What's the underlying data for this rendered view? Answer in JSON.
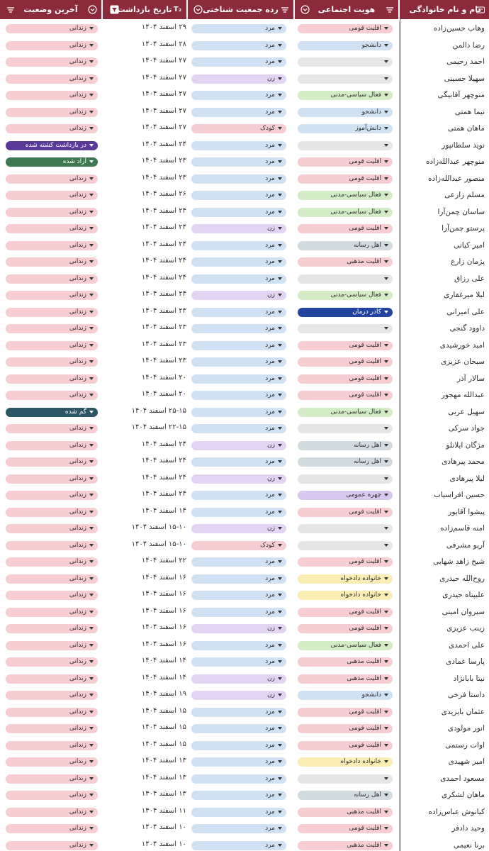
{
  "header": {
    "columns": [
      {
        "key": "name",
        "title": "نام و نام خانوادگی"
      },
      {
        "key": "identity",
        "title": "هویت اجتماعی"
      },
      {
        "key": "demographic",
        "title": "رده جمعیت شناختی"
      },
      {
        "key": "date",
        "title": "تاریخ بازداشت"
      },
      {
        "key": "status",
        "title": "آخرین وضعیت"
      }
    ],
    "colors": {
      "bar": "#8b2a3a",
      "text": "#ffffff"
    }
  },
  "colors": {
    "pink": "#f6cdd0",
    "blue": "#cfe1f3",
    "gray": "#e6e6e6",
    "green": "#d4ecc6",
    "lavender": "#e3d4f3",
    "steel": "#d2dbe0",
    "yellow": "#fbedb4",
    "purple": "#d8c7ef",
    "navy": "#23449e",
    "violet": "#5a3a99",
    "darkgreen": "#3f7752",
    "teal": "#2c5566"
  },
  "rows": [
    {
      "name": "وهاب حسین‌زاده",
      "identity": "اقلیت قومی",
      "identity_color": "pink",
      "demo": "مرد",
      "demo_color": "blue",
      "date": "۲۹ اسفند ۱۴۰۴",
      "status": "زندانی",
      "status_color": "pink"
    },
    {
      "name": "رضا دالمن",
      "identity": "دانشجو",
      "identity_color": "blue",
      "demo": "مرد",
      "demo_color": "blue",
      "date": "۲۸ اسفند ۱۴۰۴",
      "status": "زندانی",
      "status_color": "pink"
    },
    {
      "name": "احمد رحیمی",
      "identity": "",
      "identity_color": "gray",
      "demo": "مرد",
      "demo_color": "blue",
      "date": "۲۷ اسفند ۱۴۰۴",
      "status": "زندانی",
      "status_color": "pink"
    },
    {
      "name": "سهیلا حسینی",
      "identity": "",
      "identity_color": "gray",
      "demo": "زن",
      "demo_color": "lavender",
      "date": "۲۷ اسفند ۱۴۰۴",
      "status": "زندانی",
      "status_color": "pink"
    },
    {
      "name": "منوچهر آقابیگی",
      "identity": "فعال سیاسی-مدنی",
      "identity_color": "green",
      "demo": "مرد",
      "demo_color": "blue",
      "date": "۲۷ اسفند ۱۴۰۴",
      "status": "زندانی",
      "status_color": "pink"
    },
    {
      "name": "نیما همتی",
      "identity": "دانشجو",
      "identity_color": "blue",
      "demo": "مرد",
      "demo_color": "blue",
      "date": "۲۷ اسفند ۱۴۰۴",
      "status": "زندانی",
      "status_color": "pink"
    },
    {
      "name": "ماهان همتی",
      "identity": "دانش‌آموز",
      "identity_color": "blue",
      "demo": "کودک",
      "demo_color": "pink",
      "date": "۲۷ اسفند ۱۴۰۴",
      "status": "زندانی",
      "status_color": "pink"
    },
    {
      "name": "نوید سلطانپور",
      "identity": "",
      "identity_color": "gray",
      "demo": "مرد",
      "demo_color": "blue",
      "date": "۲۴ اسفند ۱۴۰۴",
      "status": "در بازداشت کشته شده",
      "status_color": "violet"
    },
    {
      "name": "منوچهر عبدالله‌زاده",
      "identity": "اقلیت قومی",
      "identity_color": "pink",
      "demo": "مرد",
      "demo_color": "blue",
      "date": "۲۳ اسفند ۱۴۰۴",
      "status": "آزاد شده",
      "status_color": "darkgreen"
    },
    {
      "name": "منصور عبدالله‌زاده",
      "identity": "اقلیت قومی",
      "identity_color": "pink",
      "demo": "مرد",
      "demo_color": "blue",
      "date": "۲۳ اسفند ۱۴۰۴",
      "status": "زندانی",
      "status_color": "pink"
    },
    {
      "name": "مسلم زارعی",
      "identity": "فعال سیاسی-مدنی",
      "identity_color": "green",
      "demo": "مرد",
      "demo_color": "blue",
      "date": "۲۶ اسفند ۱۴۰۴",
      "status": "زندانی",
      "status_color": "pink"
    },
    {
      "name": "ساسان چمن‌آرا",
      "identity": "فعال سیاسی-مدنی",
      "identity_color": "green",
      "demo": "مرد",
      "demo_color": "blue",
      "date": "۲۴ اسفند ۱۴۰۴",
      "status": "زندانی",
      "status_color": "pink"
    },
    {
      "name": "پرستو چمن‌آرا",
      "identity": "اقلیت قومی",
      "identity_color": "pink",
      "demo": "زن",
      "demo_color": "lavender",
      "date": "۲۴ اسفند ۱۴۰۴",
      "status": "زندانی",
      "status_color": "pink"
    },
    {
      "name": "امیر کیانی",
      "identity": "اهل رسانه",
      "identity_color": "steel",
      "demo": "مرد",
      "demo_color": "blue",
      "date": "۲۴ اسفند ۱۴۰۴",
      "status": "زندانی",
      "status_color": "pink"
    },
    {
      "name": "پژمان زارع",
      "identity": "اقلیت مذهبی",
      "identity_color": "pink",
      "demo": "مرد",
      "demo_color": "blue",
      "date": "۲۴ اسفند ۱۴۰۴",
      "status": "زندانی",
      "status_color": "pink"
    },
    {
      "name": "علی رزاق",
      "identity": "",
      "identity_color": "gray",
      "demo": "مرد",
      "demo_color": "blue",
      "date": "۲۴ اسفند ۱۴۰۴",
      "status": "زندانی",
      "status_color": "pink"
    },
    {
      "name": "لیلا میرغفاری",
      "identity": "فعال سیاسی-مدنی",
      "identity_color": "green",
      "demo": "زن",
      "demo_color": "lavender",
      "date": "۲۴ اسفند ۱۴۰۴",
      "status": "زندانی",
      "status_color": "pink"
    },
    {
      "name": "علی امیرانی",
      "identity": "کادر درمان",
      "identity_color": "navy",
      "demo": "مرد",
      "demo_color": "blue",
      "date": "۲۳ اسفند ۱۴۰۴",
      "status": "زندانی",
      "status_color": "pink"
    },
    {
      "name": "داوود گنجی",
      "identity": "",
      "identity_color": "gray",
      "demo": "مرد",
      "demo_color": "blue",
      "date": "۲۳ اسفند ۱۴۰۴",
      "status": "زندانی",
      "status_color": "pink"
    },
    {
      "name": "امید خورشیدی",
      "identity": "اقلیت قومی",
      "identity_color": "pink",
      "demo": "مرد",
      "demo_color": "blue",
      "date": "۲۳ اسفند ۱۴۰۴",
      "status": "زندانی",
      "status_color": "pink"
    },
    {
      "name": "سبحان عزیزی",
      "identity": "اقلیت قومی",
      "identity_color": "pink",
      "demo": "مرد",
      "demo_color": "blue",
      "date": "۲۳ اسفند ۱۴۰۴",
      "status": "زندانی",
      "status_color": "pink"
    },
    {
      "name": "سالار آذر",
      "identity": "اقلیت قومی",
      "identity_color": "pink",
      "demo": "مرد",
      "demo_color": "blue",
      "date": "۲۰ اسفند ۱۴۰۴",
      "status": "زندانی",
      "status_color": "pink"
    },
    {
      "name": "عبدالله مهجور",
      "identity": "اقلیت قومی",
      "identity_color": "pink",
      "demo": "مرد",
      "demo_color": "blue",
      "date": "۲۰ اسفند ۱۴۰۴",
      "status": "زندانی",
      "status_color": "pink"
    },
    {
      "name": "سهیل عربی",
      "identity": "فعال سیاسی-مدنی",
      "identity_color": "green",
      "demo": "مرد",
      "demo_color": "blue",
      "date": "۲۵-۱۵ اسفند ۱۴۰۴",
      "status": "گم شده",
      "status_color": "teal"
    },
    {
      "name": "جواد سرکی",
      "identity": "",
      "identity_color": "gray",
      "demo": "مرد",
      "demo_color": "blue",
      "date": "۲۲-۱۵ اسفند ۱۴۰۴",
      "status": "زندانی",
      "status_color": "pink"
    },
    {
      "name": "مژگان ایلانلو",
      "identity": "اهل رسانه",
      "identity_color": "steel",
      "demo": "زن",
      "demo_color": "lavender",
      "date": "۲۴ اسفند ۱۴۰۴",
      "status": "زندانی",
      "status_color": "pink"
    },
    {
      "name": "محمد پیرهادی",
      "identity": "اهل رسانه",
      "identity_color": "steel",
      "demo": "مرد",
      "demo_color": "blue",
      "date": "۲۴ اسفند ۱۴۰۴",
      "status": "زندانی",
      "status_color": "pink"
    },
    {
      "name": "لیلا پیرهادی",
      "identity": "",
      "identity_color": "gray",
      "demo": "زن",
      "demo_color": "lavender",
      "date": "۲۴ اسفند ۱۴۰۴",
      "status": "زندانی",
      "status_color": "pink"
    },
    {
      "name": "حسین افراسیاب",
      "identity": "چهره عمومی",
      "identity_color": "purple",
      "demo": "مرد",
      "demo_color": "blue",
      "date": "۲۴ اسفند ۱۴۰۴",
      "status": "زندانی",
      "status_color": "pink"
    },
    {
      "name": "پیشوا آقاپور",
      "identity": "اقلیت قومی",
      "identity_color": "pink",
      "demo": "مرد",
      "demo_color": "blue",
      "date": "۱۴ اسفند ۱۴۰۴",
      "status": "زندانی",
      "status_color": "pink"
    },
    {
      "name": "امنه قاسم‌زاده",
      "identity": "",
      "identity_color": "gray",
      "demo": "زن",
      "demo_color": "lavender",
      "date": "۱۵-۱۰ اسفند ۱۴۰۴",
      "status": "زندانی",
      "status_color": "pink"
    },
    {
      "name": "آریو مشرفی",
      "identity": "",
      "identity_color": "gray",
      "demo": "کودک",
      "demo_color": "pink",
      "date": "۱۵-۱۰ اسفند ۱۴۰۴",
      "status": "زندانی",
      "status_color": "pink"
    },
    {
      "name": "شیخ زاهد شهابی",
      "identity": "اقلیت قومی",
      "identity_color": "pink",
      "demo": "مرد",
      "demo_color": "blue",
      "date": "۲۲ اسفند ۱۴۰۴",
      "status": "زندانی",
      "status_color": "pink"
    },
    {
      "name": "روح‌الله حیدری",
      "identity": "خانواده دادخواه",
      "identity_color": "yellow",
      "demo": "مرد",
      "demo_color": "blue",
      "date": "۱۶ اسفند ۱۴۰۴",
      "status": "زندانی",
      "status_color": "pink"
    },
    {
      "name": "علیپناه حیدری",
      "identity": "خانواده دادخواه",
      "identity_color": "yellow",
      "demo": "مرد",
      "demo_color": "blue",
      "date": "۱۶ اسفند ۱۴۰۴",
      "status": "زندانی",
      "status_color": "pink"
    },
    {
      "name": "سیروان امینی",
      "identity": "اقلیت قومی",
      "identity_color": "pink",
      "demo": "مرد",
      "demo_color": "blue",
      "date": "۱۶ اسفند ۱۴۰۴",
      "status": "زندانی",
      "status_color": "pink"
    },
    {
      "name": "زینب عزیزی",
      "identity": "اقلیت قومی",
      "identity_color": "pink",
      "demo": "زن",
      "demo_color": "lavender",
      "date": "۱۶ اسفند ۱۴۰۴",
      "status": "زندانی",
      "status_color": "pink"
    },
    {
      "name": "علی احمدی",
      "identity": "فعال سیاسی-مدنی",
      "identity_color": "green",
      "demo": "مرد",
      "demo_color": "blue",
      "date": "۱۶ اسفند ۱۴۰۴",
      "status": "زندانی",
      "status_color": "pink"
    },
    {
      "name": "پارسا عمادی",
      "identity": "اقلیت مذهبی",
      "identity_color": "pink",
      "demo": "مرد",
      "demo_color": "blue",
      "date": "۱۴ اسفند ۱۴۰۴",
      "status": "زندانی",
      "status_color": "pink"
    },
    {
      "name": "نیتا بابانژاد",
      "identity": "اقلیت مذهبی",
      "identity_color": "pink",
      "demo": "زن",
      "demo_color": "lavender",
      "date": "۱۴ اسفند ۱۴۰۴",
      "status": "زندانی",
      "status_color": "pink"
    },
    {
      "name": "داستا فرخی",
      "identity": "دانشجو",
      "identity_color": "blue",
      "demo": "زن",
      "demo_color": "lavender",
      "date": "۱۹ اسفند ۱۴۰۴",
      "status": "زندانی",
      "status_color": "pink"
    },
    {
      "name": "عثمان بایزیدی",
      "identity": "اقلیت قومی",
      "identity_color": "pink",
      "demo": "مرد",
      "demo_color": "blue",
      "date": "۱۵ اسفند ۱۴۰۴",
      "status": "زندانی",
      "status_color": "pink"
    },
    {
      "name": "انور مولودی",
      "identity": "اقلیت قومی",
      "identity_color": "pink",
      "demo": "مرد",
      "demo_color": "blue",
      "date": "۱۵ اسفند ۱۴۰۴",
      "status": "زندانی",
      "status_color": "pink"
    },
    {
      "name": "اوات رستمی",
      "identity": "اقلیت قومی",
      "identity_color": "pink",
      "demo": "مرد",
      "demo_color": "blue",
      "date": "۱۵ اسفند ۱۴۰۴",
      "status": "زندانی",
      "status_color": "pink"
    },
    {
      "name": "امیر شهیدی",
      "identity": "خانواده دادخواه",
      "identity_color": "yellow",
      "demo": "مرد",
      "demo_color": "blue",
      "date": "۱۳ اسفند ۱۴۰۴",
      "status": "زندانی",
      "status_color": "pink"
    },
    {
      "name": "مسعود احمدی",
      "identity": "",
      "identity_color": "gray",
      "demo": "مرد",
      "demo_color": "blue",
      "date": "۱۳ اسفند ۱۴۰۴",
      "status": "زندانی",
      "status_color": "pink"
    },
    {
      "name": "ماهان لشکری",
      "identity": "اهل رسانه",
      "identity_color": "steel",
      "demo": "مرد",
      "demo_color": "blue",
      "date": "۱۳ اسفند ۱۴۰۴",
      "status": "زندانی",
      "status_color": "pink"
    },
    {
      "name": "کیانوش عباس‌زاده",
      "identity": "اقلیت مذهبی",
      "identity_color": "pink",
      "demo": "مرد",
      "demo_color": "blue",
      "date": "۱۱ اسفند ۱۴۰۴",
      "status": "زندانی",
      "status_color": "pink"
    },
    {
      "name": "وحید دادفر",
      "identity": "اقلیت قومی",
      "identity_color": "pink",
      "demo": "مرد",
      "demo_color": "blue",
      "date": "۱۰ اسفند ۱۴۰۴",
      "status": "زندانی",
      "status_color": "pink"
    },
    {
      "name": "برنا نعیمی",
      "identity": "اقلیت مذهبی",
      "identity_color": "pink",
      "demo": "مرد",
      "demo_color": "blue",
      "date": "۱۰ اسفند ۱۴۰۴",
      "status": "زندانی",
      "status_color": "pink"
    }
  ]
}
